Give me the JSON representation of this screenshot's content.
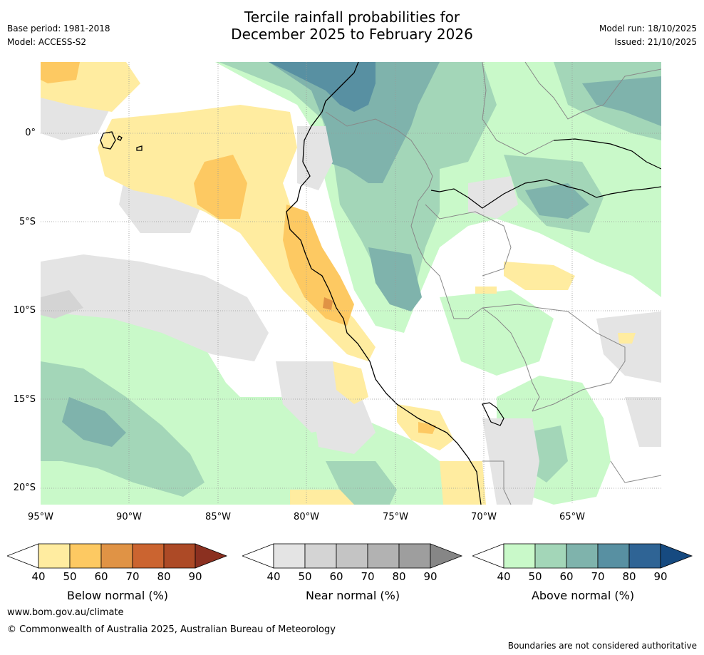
{
  "header": {
    "base_period": "Base period: 1981-2018",
    "model": "Model: ACCESS-S2",
    "title_line1": "Tercile rainfall probabilities for",
    "title_line2": "December 2025 to February 2026",
    "model_run": "Model run: 18/10/2025",
    "issued": "Issued: 21/10/2025"
  },
  "axes": {
    "lat_labels": [
      "0°",
      "5°S",
      "10°S",
      "15°S",
      "20°S"
    ],
    "lon_labels": [
      "95°W",
      "90°W",
      "85°W",
      "80°W",
      "75°W",
      "70°W",
      "65°W"
    ]
  },
  "legends": [
    {
      "label": "Below normal (%)",
      "ticks": [
        "40",
        "50",
        "60",
        "70",
        "80",
        "90"
      ],
      "colors": [
        "#ffeca0",
        "#fdc962",
        "#e09345",
        "#cb6430",
        "#ad4a26",
        "#8b3020"
      ]
    },
    {
      "label": "Near normal (%)",
      "ticks": [
        "40",
        "50",
        "60",
        "70",
        "80",
        "90"
      ],
      "colors": [
        "#e4e4e4",
        "#d4d4d4",
        "#c4c4c4",
        "#b2b2b2",
        "#9e9e9e",
        "#868686"
      ]
    },
    {
      "label": "Above normal (%)",
      "ticks": [
        "40",
        "50",
        "60",
        "70",
        "80",
        "90"
      ],
      "colors": [
        "#c9f9c9",
        "#a3d6b8",
        "#7fb3ac",
        "#5890a2",
        "#2f6495",
        "#164a80"
      ]
    }
  ],
  "footer": {
    "url": "www.bom.gov.au/climate",
    "copyright": "© Commonwealth of Australia 2025, Australian Bureau of Meteorology",
    "disclaimer": "Boundaries are not considered authoritative"
  }
}
